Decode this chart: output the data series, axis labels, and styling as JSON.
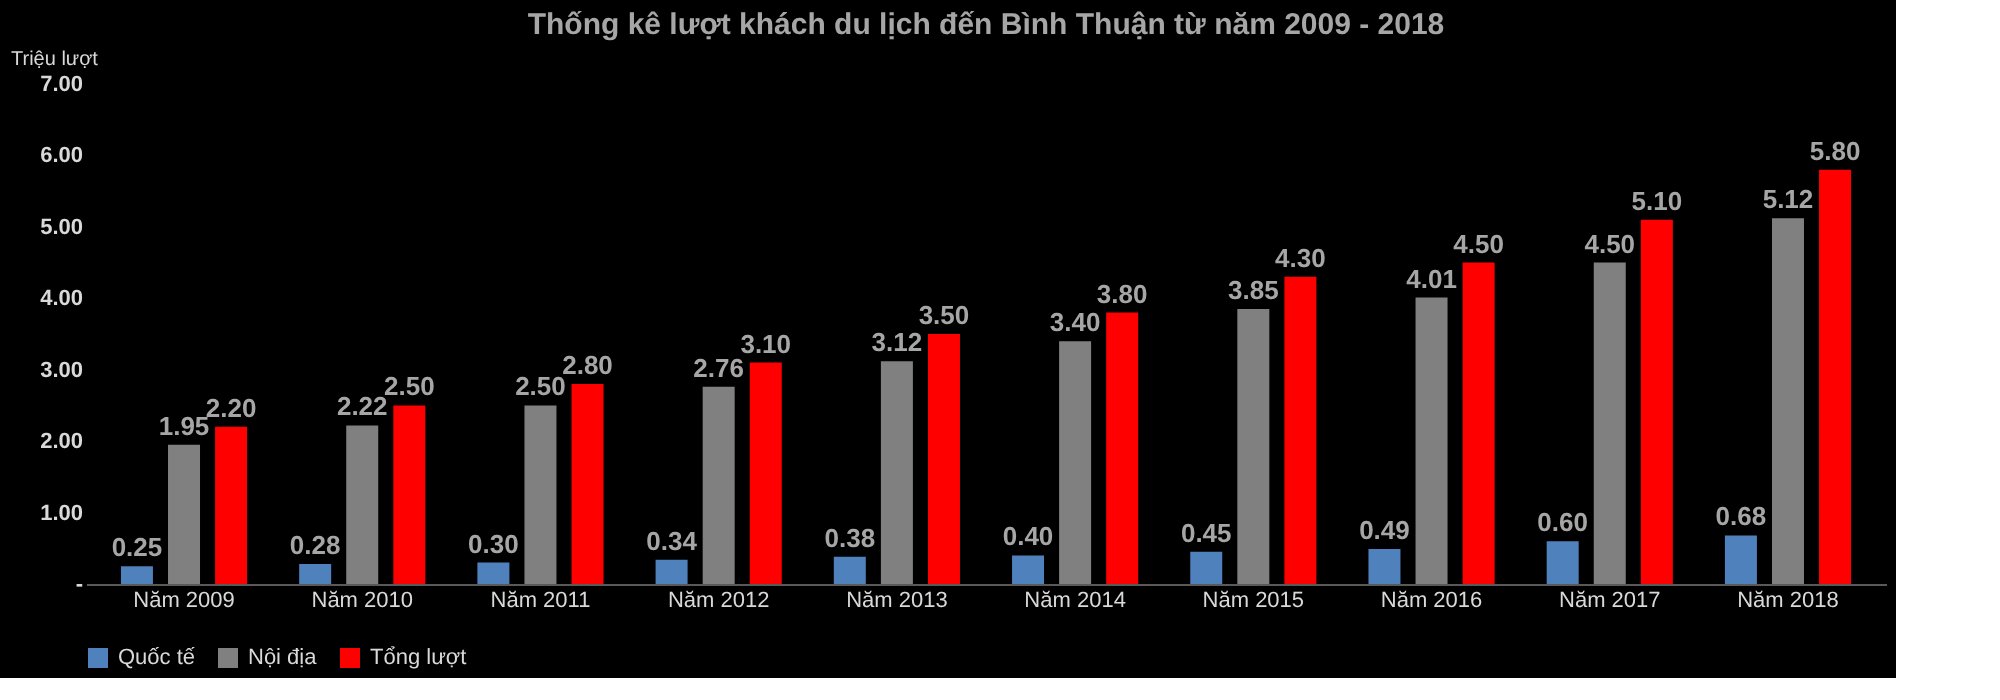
{
  "chart_data": {
    "type": "bar",
    "title": "Thống kê lượt khách du lịch đến Bình Thuận từ năm 2009 - 2018",
    "ylabel": "Triệu lượt",
    "categories": [
      "Năm 2009",
      "Năm 2010",
      "Năm 2011",
      "Năm 2012",
      "Năm 2013",
      "Năm 2014",
      "Năm 2015",
      "Năm 2016",
      "Năm 2017",
      "Năm 2018"
    ],
    "series": [
      {
        "name": "Quốc tế",
        "color": "#4f81bd",
        "values": [
          0.25,
          0.28,
          0.3,
          0.34,
          0.38,
          0.4,
          0.45,
          0.49,
          0.6,
          0.68
        ],
        "value_labels": [
          "0.25",
          "0.28",
          "0.30",
          "0.34",
          "0.38",
          "0.40",
          "0.45",
          "0.49",
          "0.60",
          "0.68"
        ]
      },
      {
        "name": "Nội địa",
        "color": "#808080",
        "values": [
          1.95,
          2.22,
          2.5,
          2.76,
          3.12,
          3.4,
          3.85,
          4.01,
          4.5,
          5.12
        ],
        "value_labels": [
          "1.95",
          "2.22",
          "2.50",
          "2.76",
          "3.12",
          "3.40",
          "3.85",
          "4.01",
          "4.50",
          "5.12"
        ]
      },
      {
        "name": "Tổng lượt",
        "color": "#ff0000",
        "values": [
          2.2,
          2.5,
          2.8,
          3.1,
          3.5,
          3.8,
          4.3,
          4.5,
          5.1,
          5.8
        ],
        "value_labels": [
          "2.20",
          "2.50",
          "2.80",
          "3.10",
          "3.50",
          "3.80",
          "4.30",
          "4.50",
          "5.10",
          "5.80"
        ]
      }
    ],
    "ylim": [
      0,
      7
    ],
    "yticks": [
      {
        "value": 0,
        "label": "-"
      },
      {
        "value": 1,
        "label": "1.00"
      },
      {
        "value": 2,
        "label": "2.00"
      },
      {
        "value": 3,
        "label": "3.00"
      },
      {
        "value": 4,
        "label": "4.00"
      },
      {
        "value": 5,
        "label": "5.00"
      },
      {
        "value": 6,
        "label": "6.00"
      },
      {
        "value": 7,
        "label": "7.00"
      }
    ],
    "grid": false,
    "legend": "bottom"
  }
}
